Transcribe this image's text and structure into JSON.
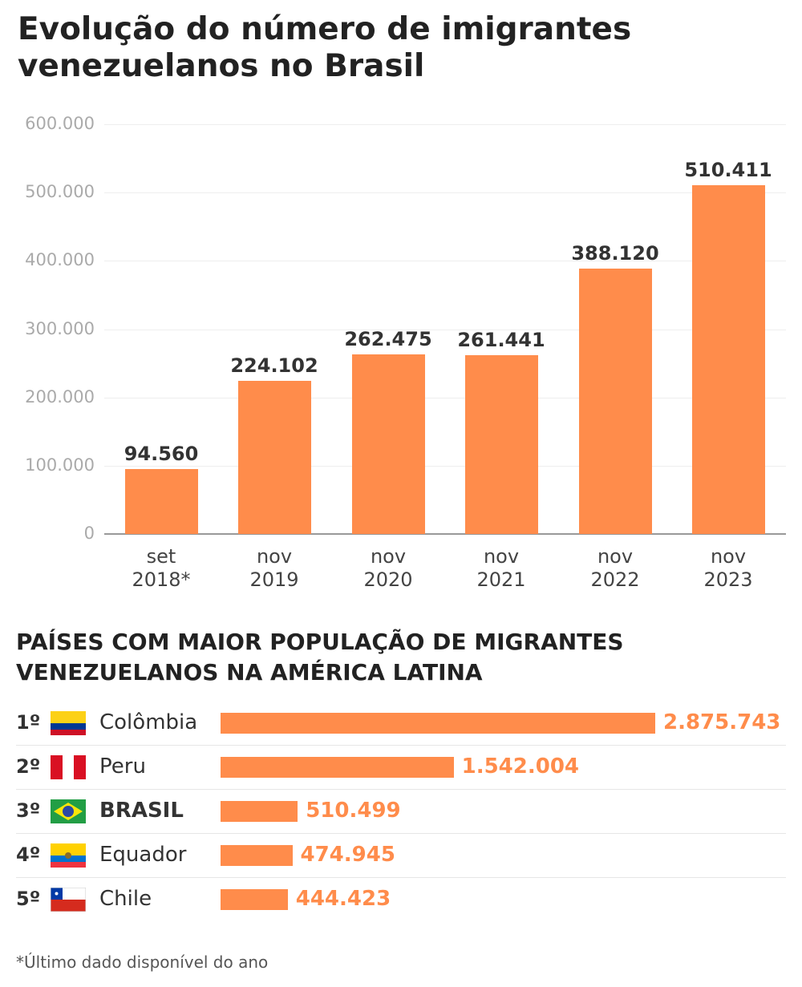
{
  "chart_data": [
    {
      "type": "bar",
      "title": "Evolução do número de imigrantes venezuelanos no Brasil",
      "categories": [
        [
          "set",
          "2018*"
        ],
        [
          "nov",
          "2019"
        ],
        [
          "nov",
          "2020"
        ],
        [
          "nov",
          "2021"
        ],
        [
          "nov",
          "2022"
        ],
        [
          "nov",
          "2023"
        ]
      ],
      "values": [
        94560,
        224102,
        262475,
        261441,
        388120,
        510411
      ],
      "data_labels": [
        "94.560",
        "224.102",
        "262.475",
        "261.441",
        "388.120",
        "510.411"
      ],
      "yticks": [
        "0",
        "100.000",
        "200.000",
        "300.000",
        "400.000",
        "500.000",
        "600.000"
      ],
      "ytick_values": [
        0,
        100000,
        200000,
        300000,
        400000,
        500000,
        600000
      ],
      "ylim": [
        0,
        600000
      ],
      "grid": true,
      "color": "#FF8C4B"
    },
    {
      "type": "bar",
      "orientation": "horizontal",
      "title": "PAÍSES COM MAIOR POPULAÇÃO DE MIGRANTES VENEZUELANOS NA AMÉRICA LATINA",
      "rows": [
        {
          "rank": "1º",
          "country": "Colômbia",
          "flag": "colombia-flag",
          "value": 2875743,
          "label": "2.875.743"
        },
        {
          "rank": "2º",
          "country": "Peru",
          "flag": "peru-flag",
          "value": 1542004,
          "label": "1.542.004"
        },
        {
          "rank": "3º",
          "country": "BRASIL",
          "flag": "brazil-flag",
          "value": 510499,
          "label": "510.499",
          "bold": true
        },
        {
          "rank": "4º",
          "country": "Equador",
          "flag": "ecuador-flag",
          "value": 474945,
          "label": "474.945"
        },
        {
          "rank": "5º",
          "country": "Chile",
          "flag": "chile-flag",
          "value": 444423,
          "label": "444.423"
        }
      ],
      "color": "#FF8C4B"
    }
  ],
  "footnote": "*Último dado disponível do ano"
}
